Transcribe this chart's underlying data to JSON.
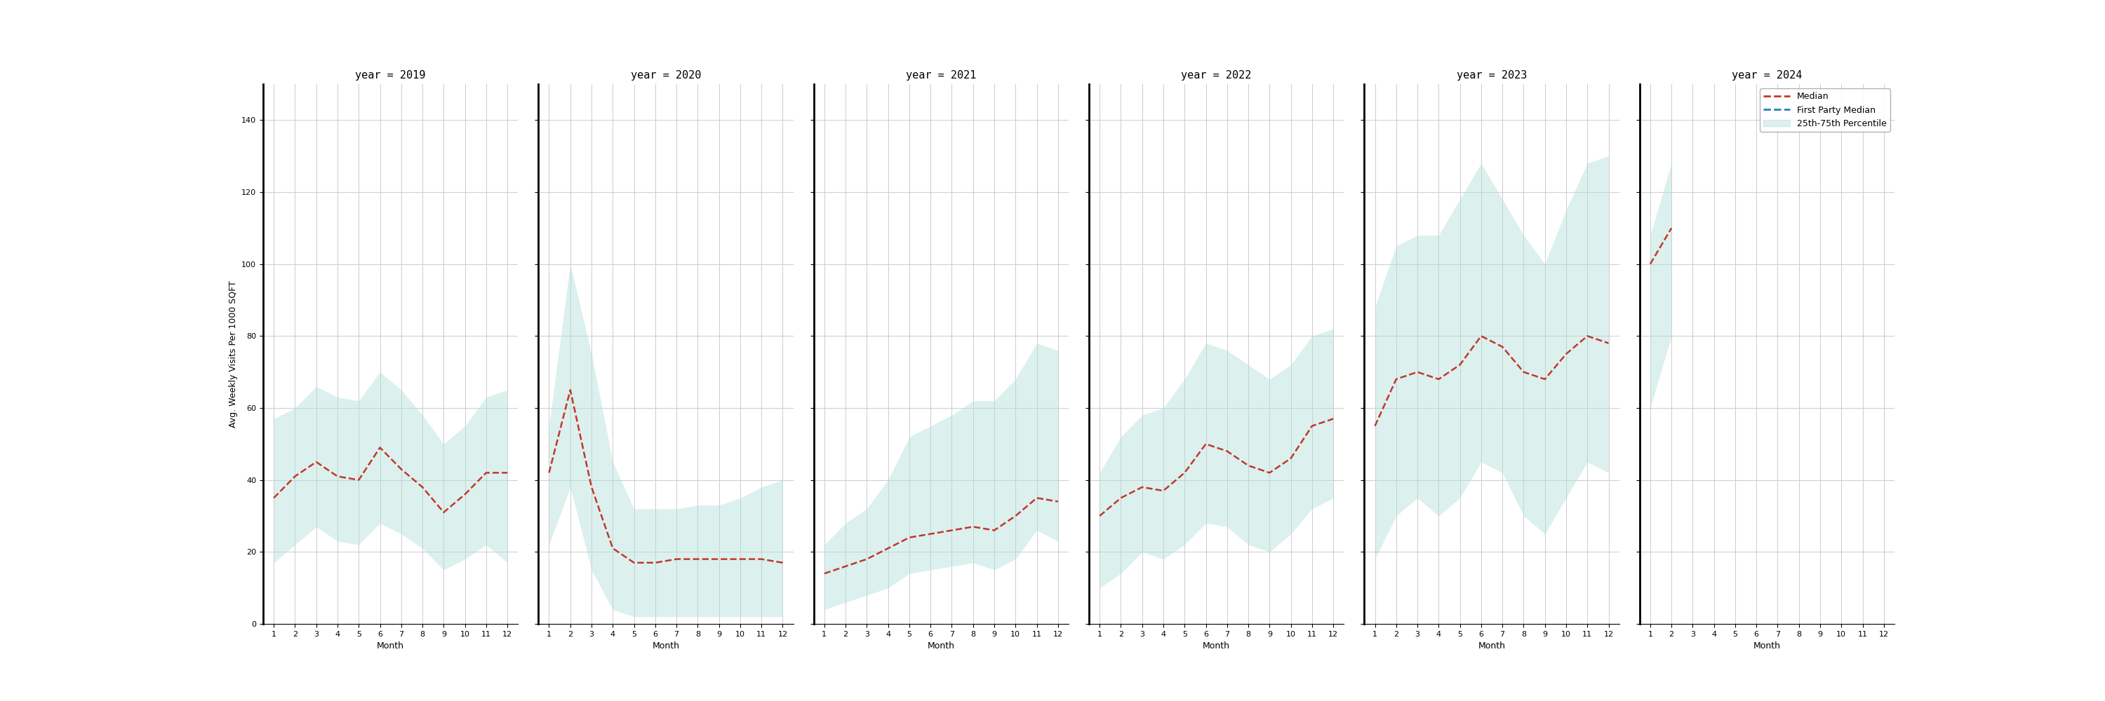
{
  "years": [
    2019,
    2020,
    2021,
    2022,
    2023,
    2024
  ],
  "months": [
    1,
    2,
    3,
    4,
    5,
    6,
    7,
    8,
    9,
    10,
    11,
    12
  ],
  "median": {
    "2019": [
      35,
      41,
      45,
      41,
      40,
      49,
      43,
      38,
      31,
      36,
      42,
      42
    ],
    "2020": [
      42,
      65,
      38,
      21,
      17,
      17,
      18,
      18,
      18,
      18,
      18,
      17
    ],
    "2021": [
      14,
      16,
      18,
      21,
      24,
      25,
      26,
      27,
      26,
      30,
      35,
      34
    ],
    "2022": [
      30,
      35,
      38,
      37,
      42,
      50,
      48,
      44,
      42,
      46,
      55,
      57
    ],
    "2023": [
      55,
      68,
      70,
      68,
      72,
      80,
      77,
      70,
      68,
      75,
      80,
      78
    ],
    "2024": [
      100,
      110,
      null,
      null,
      null,
      null,
      null,
      null,
      null,
      null,
      null,
      null
    ]
  },
  "p25": {
    "2019": [
      17,
      22,
      27,
      23,
      22,
      28,
      25,
      21,
      15,
      18,
      22,
      17
    ],
    "2020": [
      22,
      38,
      15,
      4,
      2,
      2,
      2,
      2,
      2,
      2,
      2,
      2
    ],
    "2021": [
      4,
      6,
      8,
      10,
      14,
      15,
      16,
      17,
      15,
      18,
      26,
      23
    ],
    "2022": [
      10,
      14,
      20,
      18,
      22,
      28,
      27,
      22,
      20,
      25,
      32,
      35
    ],
    "2023": [
      18,
      30,
      35,
      30,
      35,
      45,
      42,
      30,
      25,
      35,
      45,
      42
    ],
    "2024": [
      60,
      80,
      null,
      null,
      null,
      null,
      null,
      null,
      null,
      null,
      null,
      null
    ]
  },
  "p75": {
    "2019": [
      57,
      60,
      66,
      63,
      62,
      70,
      65,
      58,
      50,
      55,
      63,
      65
    ],
    "2020": [
      55,
      100,
      75,
      45,
      32,
      32,
      32,
      33,
      33,
      35,
      38,
      40
    ],
    "2021": [
      22,
      28,
      32,
      40,
      52,
      55,
      58,
      62,
      62,
      68,
      78,
      76
    ],
    "2022": [
      42,
      52,
      58,
      60,
      68,
      78,
      76,
      72,
      68,
      72,
      80,
      82
    ],
    "2023": [
      88,
      105,
      108,
      108,
      118,
      128,
      118,
      108,
      100,
      115,
      128,
      130
    ],
    "2024": [
      108,
      128,
      null,
      null,
      null,
      null,
      null,
      null,
      null,
      null,
      null,
      null
    ]
  },
  "ylim": [
    0,
    150
  ],
  "yticks": [
    0,
    20,
    40,
    60,
    80,
    100,
    120,
    140
  ],
  "ylabel": "Avg. Weekly Visits Per 1000 SQFT",
  "xlabel": "Month",
  "median_color": "#c0392b",
  "fp_median_color": "#2980b9",
  "fill_color": "#b2dfdb",
  "fill_alpha": 0.45,
  "grid_color": "#cccccc",
  "background_color": "#ffffff",
  "title_fontsize": 11,
  "axis_fontsize": 9,
  "tick_fontsize": 8
}
